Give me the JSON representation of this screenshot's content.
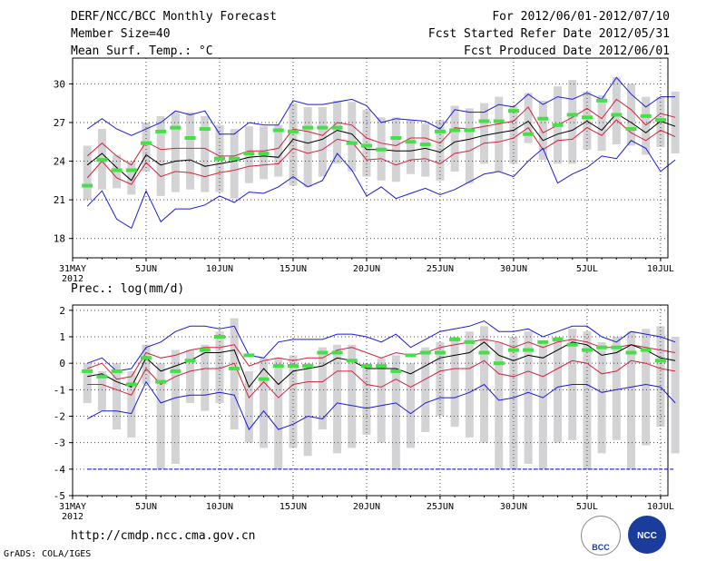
{
  "header": {
    "title": "DERF/NCC/BCC Monthly Forecast",
    "member_size": "Member Size=40",
    "variable_temp": "Mean Surf. Temp.: °C",
    "forecast_period": "For 2012/06/01-2012/07/10",
    "refer_date": "Fcst Started Refer Date 2012/05/31",
    "produced_date": "Fcst Produced Date 2012/06/01"
  },
  "footer": {
    "url": "http://cmdp.ncc.cma.gov.cn",
    "grads": "GrADS: COLA/IGES",
    "logo_bcc": "BCC",
    "logo_ncc": "NCC"
  },
  "colors": {
    "envelope": "#1a1adc",
    "spread": "#d8203a",
    "mean": "#000000",
    "box": "#d3d3d6",
    "observed": "#44e046",
    "zero_line": "#0000cc"
  },
  "chart_data": [
    {
      "type": "line",
      "title": "Mean Surf. Temp.: °C",
      "xlabel": "",
      "ylabel": "",
      "ylim": [
        16.5,
        32
      ],
      "yticks": [
        18,
        21,
        24,
        27,
        30
      ],
      "xlim": [
        1,
        41.5
      ],
      "xticks": [
        {
          "x": 1,
          "label": "31MAY",
          "label2": "2012"
        },
        {
          "x": 6,
          "label": "5JUN"
        },
        {
          "x": 11,
          "label": "10JUN"
        },
        {
          "x": 16,
          "label": "15JUN"
        },
        {
          "x": 21,
          "label": "20JUN"
        },
        {
          "x": 26,
          "label": "25JUN"
        },
        {
          "x": 31,
          "label": "30JUN"
        },
        {
          "x": 36,
          "label": "5JUL"
        },
        {
          "x": 41,
          "label": "10JUL"
        }
      ],
      "grid": true,
      "x_start": 2,
      "series": [
        {
          "name": "max",
          "values": [
            26.5,
            27.3,
            26.5,
            26,
            26.5,
            27,
            27.9,
            27.6,
            27.9,
            26.1,
            26.1,
            27,
            26.8,
            26.8,
            28.7,
            28.4,
            28.4,
            28.6,
            28.8,
            28.3,
            27,
            27.3,
            27.2,
            27.1,
            26.5,
            28,
            27.8,
            27.8,
            28.4,
            28.2,
            29.2,
            28.4,
            29,
            28.8,
            29.3,
            28.8,
            30.5,
            29.2,
            28.2,
            29,
            29
          ]
        },
        {
          "name": "upper",
          "values": [
            24.4,
            25.4,
            24.4,
            23.7,
            25.5,
            24.9,
            25,
            25,
            25,
            24.4,
            24.4,
            24.8,
            24.8,
            25,
            26.5,
            26.3,
            26,
            27,
            26.8,
            25.8,
            25.4,
            25.2,
            25.8,
            25.8,
            25.4,
            26.6,
            26.5,
            26.7,
            26.9,
            27.1,
            28.2,
            26.2,
            26.8,
            27.4,
            28.1,
            27.3,
            28.8,
            28,
            26.8,
            27.7,
            27.4
          ]
        },
        {
          "name": "mean",
          "values": [
            23.7,
            24.6,
            23.5,
            22.5,
            24.5,
            23.7,
            24,
            24.1,
            23.6,
            23.8,
            24,
            24.3,
            24.4,
            24.3,
            25.7,
            25.4,
            25.7,
            26.4,
            26.1,
            24.9,
            24.9,
            24.8,
            24.8,
            25,
            24.7,
            25.5,
            25.7,
            26,
            26.2,
            26.4,
            27.1,
            25.6,
            26.1,
            26.4,
            27.1,
            26.4,
            27.7,
            27,
            26.2,
            27.1,
            26.7
          ]
        },
        {
          "name": "lower",
          "values": [
            22.7,
            24,
            22.7,
            22.2,
            23.9,
            22.8,
            23.2,
            23.1,
            22.8,
            23.1,
            23.3,
            23.6,
            23.7,
            23.8,
            25,
            24.6,
            24.9,
            25.7,
            25.5,
            24.1,
            24.2,
            23.7,
            24.1,
            24.2,
            23.8,
            24.6,
            24.8,
            25.4,
            25.5,
            25.8,
            26.6,
            24.9,
            25.6,
            25.7,
            26.6,
            26,
            27.2,
            26.2,
            25.6,
            26.4,
            25.9
          ]
        },
        {
          "name": "min",
          "values": [
            20.5,
            21.7,
            19.5,
            18.8,
            21.7,
            19.3,
            20.3,
            20.3,
            20.6,
            21.3,
            20.8,
            21.6,
            21.5,
            22,
            22.8,
            22,
            22.5,
            24.6,
            23.3,
            21.3,
            22,
            21.1,
            21.5,
            21.9,
            21.4,
            21.8,
            22.4,
            23,
            23.2,
            22.8,
            24,
            25,
            22.3,
            23,
            23.5,
            24.4,
            24.2,
            25.6,
            25,
            23.2,
            24.1
          ]
        }
      ],
      "boxes": [
        [
          21,
          25.2
        ],
        [
          21.8,
          26.5
        ],
        [
          21.9,
          24.5
        ],
        [
          21.4,
          24
        ],
        [
          23.2,
          27
        ],
        [
          21.3,
          27.5
        ],
        [
          21.6,
          27.8
        ],
        [
          21.8,
          27.8
        ],
        [
          21.6,
          27.5
        ],
        [
          21.6,
          26.8
        ],
        [
          21.1,
          26.5
        ],
        [
          22.3,
          26.7
        ],
        [
          22.6,
          26.7
        ],
        [
          22.8,
          26.8
        ],
        [
          22.1,
          28.5
        ],
        [
          22,
          28.2
        ],
        [
          22.8,
          28.2
        ],
        [
          23.8,
          28.7
        ],
        [
          23.2,
          28.6
        ],
        [
          22.8,
          28
        ],
        [
          22.5,
          27.4
        ],
        [
          22.4,
          27.4
        ],
        [
          23,
          27.2
        ],
        [
          22.8,
          26.9
        ],
        [
          22.5,
          27.2
        ],
        [
          23.2,
          28.3
        ],
        [
          22.3,
          28.1
        ],
        [
          23.8,
          28.5
        ],
        [
          23.2,
          29
        ],
        [
          23.8,
          28.3
        ],
        [
          25.4,
          29.3
        ],
        [
          24.1,
          28.7
        ],
        [
          23.8,
          29.8
        ],
        [
          23.8,
          30.3
        ],
        [
          24.9,
          29.4
        ],
        [
          24.8,
          29.1
        ],
        [
          25.3,
          30.5
        ],
        [
          25.2,
          30
        ],
        [
          24.5,
          29
        ],
        [
          25.1,
          29
        ],
        [
          24.6,
          29.4
        ]
      ],
      "observed": [
        [
          2,
          22.1
        ],
        [
          3,
          24.1
        ],
        [
          4,
          23.3
        ],
        [
          5,
          23.3
        ],
        [
          6,
          25.4
        ],
        [
          7,
          26.3
        ],
        [
          8,
          26.6
        ],
        [
          9,
          25.8
        ],
        [
          10,
          26.5
        ],
        [
          11,
          24.2
        ],
        [
          12,
          24.2
        ],
        [
          13,
          24.6
        ],
        [
          14,
          24.6
        ],
        [
          15,
          26.4
        ],
        [
          16,
          26.3
        ],
        [
          17,
          26.6
        ],
        [
          18,
          26.6
        ],
        [
          19,
          26.6
        ],
        [
          20,
          25.4
        ],
        [
          21,
          25.2
        ],
        [
          22,
          24.9
        ],
        [
          23,
          25.8
        ],
        [
          24,
          25.5
        ],
        [
          25,
          25.3
        ],
        [
          26,
          26.3
        ],
        [
          27,
          26.4
        ],
        [
          28,
          26.4
        ],
        [
          29,
          27.1
        ],
        [
          30,
          27.1
        ],
        [
          31,
          27.9
        ],
        [
          32,
          26.1
        ],
        [
          33,
          27.3
        ],
        [
          34,
          26.8
        ],
        [
          35,
          27.6
        ],
        [
          36,
          27.4
        ],
        [
          37,
          28.7
        ],
        [
          38,
          27.6
        ],
        [
          39,
          26.5
        ],
        [
          40,
          27.5
        ],
        [
          41,
          27.2
        ]
      ]
    },
    {
      "type": "line",
      "title": "Prec.: log(mm/d)",
      "xlabel": "",
      "ylabel": "",
      "ylim": [
        -5,
        2.2
      ],
      "yticks": [
        -5,
        -4,
        -3,
        -2,
        -1,
        0,
        1,
        2
      ],
      "xlim": [
        1,
        41.5
      ],
      "xticks": [
        {
          "x": 1,
          "label": "31MAY",
          "label2": "2012"
        },
        {
          "x": 6,
          "label": "5JUN"
        },
        {
          "x": 11,
          "label": "10JUN"
        },
        {
          "x": 16,
          "label": "15JUN"
        },
        {
          "x": 21,
          "label": "20JUN"
        },
        {
          "x": 26,
          "label": "25JUN"
        },
        {
          "x": 31,
          "label": "30JUN"
        },
        {
          "x": 36,
          "label": "5JUL"
        },
        {
          "x": 41,
          "label": "10JUL"
        }
      ],
      "grid": true,
      "x_start": 2,
      "floor_value": -4,
      "series": [
        {
          "name": "max",
          "values": [
            0,
            0.2,
            -0.3,
            -0.2,
            0.6,
            0.8,
            1.2,
            1.4,
            1.4,
            1.3,
            1.4,
            0.3,
            0.2,
            0.8,
            0.9,
            0.9,
            0.9,
            1.1,
            1.1,
            1,
            0.8,
            1.1,
            0.6,
            0.9,
            1.2,
            1.3,
            1.4,
            1.6,
            1.2,
            1.2,
            1.3,
            1,
            1.2,
            1.4,
            1.4,
            1,
            0.8,
            1.2,
            1.1,
            1,
            0.8
          ]
        },
        {
          "name": "upper",
          "values": [
            -0.2,
            0,
            -0.6,
            -0.5,
            0.4,
            0.2,
            0.3,
            0.5,
            0.6,
            0.6,
            0.7,
            -0.1,
            0.1,
            0.2,
            0.1,
            0.2,
            0.2,
            0.5,
            0.6,
            0.4,
            0.2,
            0.4,
            0.3,
            0.4,
            0.6,
            0.7,
            0.8,
            0.9,
            0.8,
            0.6,
            0.8,
            0.6,
            0.8,
            0.9,
            0.8,
            0.6,
            0.6,
            0.7,
            0.6,
            0.5,
            0.4
          ]
        },
        {
          "name": "mean",
          "values": [
            -0.5,
            -0.4,
            -0.7,
            -0.9,
            0.2,
            -0.3,
            -0.1,
            0.1,
            0.4,
            0.4,
            0.5,
            -0.9,
            -0.2,
            -0.8,
            -0.3,
            -0.2,
            -0.1,
            0.2,
            0.1,
            -0.2,
            -0.2,
            -0.2,
            -0.4,
            -0.1,
            0.2,
            0.3,
            0.4,
            0.8,
            0.3,
            0.1,
            0.3,
            0.2,
            0.5,
            0.8,
            0.7,
            0.3,
            0.4,
            0.7,
            0.5,
            0.2,
            0.1
          ]
        },
        {
          "name": "lower",
          "values": [
            -0.8,
            -0.8,
            -1,
            -1.2,
            -0.2,
            -0.8,
            -0.5,
            -0.3,
            -0.2,
            -0.2,
            0,
            -1.3,
            -0.7,
            -1.3,
            -0.8,
            -0.7,
            -0.7,
            -0.3,
            -0.3,
            -0.8,
            -0.9,
            -0.6,
            -0.9,
            -0.6,
            -0.3,
            -0.2,
            -0.2,
            0.1,
            -0.4,
            -0.5,
            -0.3,
            -0.5,
            -0.2,
            0.1,
            0,
            -0.4,
            -0.3,
            0.1,
            0,
            -0.2,
            -0.3
          ]
        },
        {
          "name": "min",
          "values": [
            -2.1,
            -1.8,
            -1.8,
            -1.9,
            -0.7,
            -1.5,
            -1.3,
            -1.2,
            -1.2,
            -1.1,
            -1.2,
            -2.5,
            -1.8,
            -2.5,
            -2.3,
            -2,
            -2.1,
            -1.5,
            -1.6,
            -1.7,
            -1.6,
            -1.5,
            -1.9,
            -1.5,
            -1.3,
            -1.3,
            -1.1,
            -0.8,
            -1.4,
            -1.3,
            -1.1,
            -1.3,
            -0.9,
            -0.8,
            -0.8,
            -1.1,
            -1,
            -0.9,
            -0.8,
            -0.9,
            -1.5
          ]
        }
      ],
      "boxes": [
        [
          -1.5,
          0
        ],
        [
          -1.8,
          -0.3
        ],
        [
          -2.5,
          0
        ],
        [
          -2.8,
          -0.3
        ],
        [
          -0.8,
          0.7
        ],
        [
          -4,
          0
        ],
        [
          -3.8,
          0.5
        ],
        [
          -1.5,
          0.5
        ],
        [
          -1.8,
          0.7
        ],
        [
          -1.5,
          1.2
        ],
        [
          -2.5,
          1.7
        ],
        [
          -3,
          -0.3
        ],
        [
          -3.2,
          0.2
        ],
        [
          -4,
          0.2
        ],
        [
          -3.2,
          0.3
        ],
        [
          -3.5,
          0
        ],
        [
          -2.5,
          0.6
        ],
        [
          -3.4,
          0.7
        ],
        [
          -3.2,
          0.7
        ],
        [
          -2.7,
          0
        ],
        [
          -3,
          0.2
        ],
        [
          -4,
          0.3
        ],
        [
          -3.2,
          0
        ],
        [
          -2.6,
          0.6
        ],
        [
          -2,
          0.8
        ],
        [
          -2.4,
          1
        ],
        [
          -2.8,
          1.2
        ],
        [
          -3,
          1.4
        ],
        [
          -4,
          0.8
        ],
        [
          -4,
          1
        ],
        [
          -3.8,
          1.2
        ],
        [
          -4,
          0.8
        ],
        [
          -3,
          1
        ],
        [
          -2.9,
          1.3
        ],
        [
          -4,
          1.2
        ],
        [
          -3.4,
          0.8
        ],
        [
          -2.9,
          1
        ],
        [
          -4,
          1.2
        ],
        [
          -3.1,
          1.3
        ],
        [
          -2.4,
          1.4
        ],
        [
          -3.4,
          1
        ]
      ],
      "observed": [
        [
          2,
          -0.3
        ],
        [
          3,
          -0.5
        ],
        [
          4,
          -0.3
        ],
        [
          5,
          -0.8
        ],
        [
          6,
          0.2
        ],
        [
          7,
          -0.7
        ],
        [
          8,
          -0.3
        ],
        [
          9,
          0.1
        ],
        [
          10,
          0.5
        ],
        [
          11,
          1
        ],
        [
          12,
          -0.2
        ],
        [
          13,
          0.3
        ],
        [
          14,
          -0.6
        ],
        [
          15,
          -0.1
        ],
        [
          16,
          -0.1
        ],
        [
          17,
          -0.1
        ],
        [
          18,
          0.4
        ],
        [
          19,
          0.4
        ],
        [
          20,
          0.1
        ],
        [
          21,
          -0.1
        ],
        [
          22,
          -0.1
        ],
        [
          23,
          -0.3
        ],
        [
          24,
          0.3
        ],
        [
          25,
          0.4
        ],
        [
          26,
          0.4
        ],
        [
          27,
          0.9
        ],
        [
          28,
          0.8
        ],
        [
          29,
          0.4
        ],
        [
          30,
          0
        ],
        [
          31,
          0.5
        ],
        [
          32,
          0.5
        ],
        [
          33,
          0.8
        ],
        [
          34,
          0.9
        ],
        [
          35,
          0.7
        ],
        [
          36,
          0.5
        ],
        [
          37,
          0.6
        ],
        [
          38,
          0.6
        ],
        [
          39,
          0.4
        ],
        [
          40,
          0.5
        ],
        [
          41,
          0.1
        ]
      ]
    }
  ]
}
